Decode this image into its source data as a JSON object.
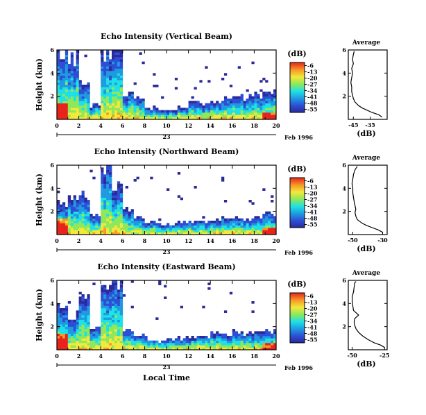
{
  "chart_data": [
    {
      "type": "heatmap",
      "title": "Echo Intensity (Vertical Beam)",
      "ylabel": "Height (km)",
      "xlabel": "",
      "xlim": [
        0,
        20
      ],
      "ylim": [
        0,
        6
      ],
      "xticks": [
        "0",
        "2",
        "4",
        "6",
        "8",
        "10",
        "12",
        "14",
        "16",
        "18",
        "20"
      ],
      "yticks": [
        "2",
        "4",
        "6"
      ],
      "date_label": "23",
      "date_suffix": "Feb 1996",
      "colorbar": {
        "label": "(dB)",
        "ticks": [
          "-6",
          "-13",
          "-20",
          "-27",
          "-34",
          "-41",
          "-48",
          "-55"
        ],
        "min": -58,
        "max": -3
      },
      "echo_top_km": [
        5.8,
        5.2,
        3.2,
        1.2,
        5.9,
        5.9,
        2.2,
        1.9,
        1.0,
        0.8,
        0.8,
        1.1,
        1.4,
        1.3,
        1.5,
        1.8,
        2.0,
        1.9,
        2.2,
        2.3
      ],
      "profile": {
        "title": "Average",
        "xlabel": "(dB)",
        "xlim": [
          -48,
          -25
        ],
        "xticks": [
          "-45",
          "-35"
        ],
        "ylim": [
          0,
          6
        ],
        "yticks": [
          "2",
          "4",
          "6"
        ],
        "height_km": [
          0.2,
          0.4,
          0.6,
          0.8,
          1.0,
          1.2,
          1.5,
          1.8,
          2.1,
          2.4,
          2.8,
          3.2,
          3.6,
          4.0,
          4.4,
          4.8,
          5.2,
          5.6,
          5.9
        ],
        "db": [
          -28,
          -30,
          -34,
          -37,
          -40,
          -42,
          -44,
          -45,
          -45.5,
          -46,
          -46,
          -46.5,
          -46,
          -45.5,
          -46,
          -45,
          -45.5,
          -45,
          -44.5
        ]
      }
    },
    {
      "type": "heatmap",
      "title": "Echo Intensity (Northward Beam)",
      "ylabel": "Height (km)",
      "xlabel": "",
      "xlim": [
        0,
        20
      ],
      "ylim": [
        0,
        6
      ],
      "xticks": [
        "0",
        "2",
        "4",
        "6",
        "8",
        "10",
        "12",
        "14",
        "16",
        "18",
        "20"
      ],
      "yticks": [
        "2",
        "4",
        "6"
      ],
      "date_label": "23",
      "date_suffix": "Feb 1996",
      "colorbar": {
        "label": "(dB)",
        "ticks": [
          "-6",
          "-13",
          "-20",
          "-27",
          "-34",
          "-41",
          "-48",
          "-55"
        ],
        "min": -58,
        "max": -3
      },
      "echo_top_km": [
        2.6,
        3.1,
        3.4,
        1.8,
        5.9,
        4.0,
        2.2,
        1.4,
        1.1,
        0.9,
        1.0,
        1.1,
        1.2,
        1.2,
        1.3,
        1.5,
        1.4,
        1.3,
        1.6,
        1.8
      ],
      "profile": {
        "title": "Average",
        "xlabel": "(dB)",
        "xlim": [
          -53,
          -27
        ],
        "xticks": [
          "-50",
          "-30"
        ],
        "ylim": [
          0,
          6
        ],
        "yticks": [
          "2",
          "4",
          "6"
        ],
        "height_km": [
          0.2,
          0.4,
          0.6,
          0.8,
          1.0,
          1.3,
          1.6,
          1.9,
          2.2,
          2.5,
          2.8,
          3.2,
          3.6,
          4.0,
          4.4,
          4.8,
          5.2,
          5.6,
          5.9
        ],
        "db": [
          -30,
          -33,
          -37,
          -41,
          -44,
          -47,
          -48,
          -48.5,
          -48,
          -48.5,
          -49,
          -49.5,
          -50,
          -50,
          -50.5,
          -50,
          -49.5,
          -48.5,
          -47
        ]
      }
    },
    {
      "type": "heatmap",
      "title": "Echo Intensity (Eastward Beam)",
      "ylabel": "Height (km)",
      "xlabel": "Local Time",
      "xlim": [
        0,
        20
      ],
      "ylim": [
        0,
        6
      ],
      "xticks": [
        "0",
        "2",
        "4",
        "6",
        "8",
        "10",
        "12",
        "14",
        "16",
        "18",
        "20"
      ],
      "yticks": [
        "2",
        "4",
        "6"
      ],
      "date_label": "23",
      "date_suffix": "Feb 1996",
      "colorbar": {
        "label": "(dB)",
        "ticks": [
          "-6",
          "-13",
          "-20",
          "-27",
          "-34",
          "-41",
          "-48",
          "-55"
        ],
        "min": -58,
        "max": -3
      },
      "echo_top_km": [
        3.6,
        3.0,
        4.8,
        1.8,
        5.9,
        5.9,
        1.8,
        1.3,
        1.0,
        0.8,
        0.9,
        1.0,
        1.1,
        1.2,
        1.4,
        1.3,
        1.5,
        1.4,
        1.6,
        1.7
      ],
      "profile": {
        "title": "Average",
        "xlabel": "(dB)",
        "xlim": [
          -53,
          -23
        ],
        "xticks": [
          "-50",
          "-25"
        ],
        "ylim": [
          0,
          6
        ],
        "yticks": [
          "2",
          "4",
          "6"
        ],
        "height_km": [
          0.2,
          0.4,
          0.6,
          0.9,
          1.2,
          1.5,
          1.8,
          2.1,
          2.4,
          2.7,
          3.0,
          3.4,
          3.8,
          4.2,
          4.6,
          5.0,
          5.4,
          5.8,
          5.9
        ],
        "db": [
          -25,
          -28,
          -33,
          -38,
          -42,
          -45,
          -47,
          -48,
          -48.5,
          -48,
          -45,
          -49,
          -49.5,
          -50,
          -50,
          -49,
          -48.5,
          -48,
          -47
        ]
      }
    }
  ]
}
